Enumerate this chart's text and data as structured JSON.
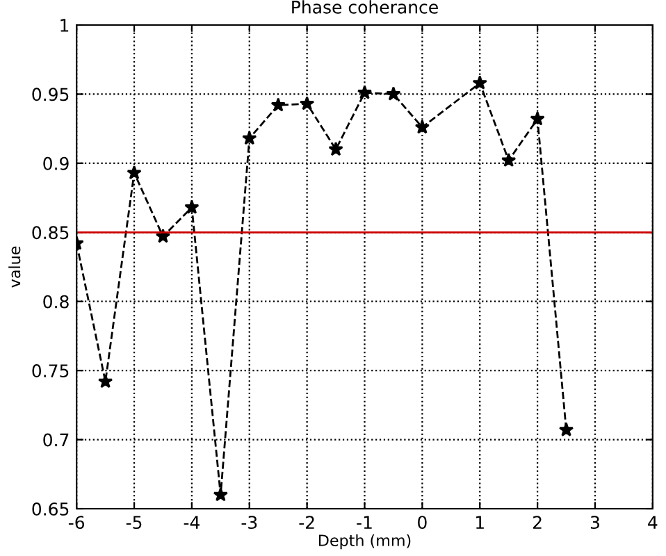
{
  "chart_data": {
    "type": "line",
    "title": "Phase coherance",
    "xlabel": "Depth (mm)",
    "ylabel": "value",
    "x": [
      -6,
      -5.5,
      -5,
      -4.5,
      -4,
      -3.5,
      -3,
      -2.5,
      -2,
      -1.5,
      -1,
      -0.5,
      0,
      1,
      1.5,
      2,
      2.5
    ],
    "series": [
      {
        "color": "#000000",
        "values": [
          0.842,
          0.742,
          0.893,
          0.847,
          0.868,
          0.66,
          0.918,
          0.942,
          0.943,
          0.91,
          0.951,
          0.95,
          0.926,
          0.958,
          0.902,
          0.932,
          0.707
        ]
      }
    ],
    "xlim": [
      -6,
      4
    ],
    "ylim": [
      0.65,
      1
    ],
    "xticks": [
      -6,
      -5,
      -4,
      -3,
      -2,
      -1,
      0,
      1,
      2,
      3,
      4
    ],
    "yticks": [
      0.65,
      0.7,
      0.75,
      0.8,
      0.85,
      0.9,
      0.95,
      1
    ],
    "ref_lines": [
      {
        "axis": "y",
        "value": 0.85,
        "color": "#cc0000",
        "line_style": "solid"
      }
    ],
    "grid": true,
    "marker": "star",
    "line_style": "dashed"
  }
}
